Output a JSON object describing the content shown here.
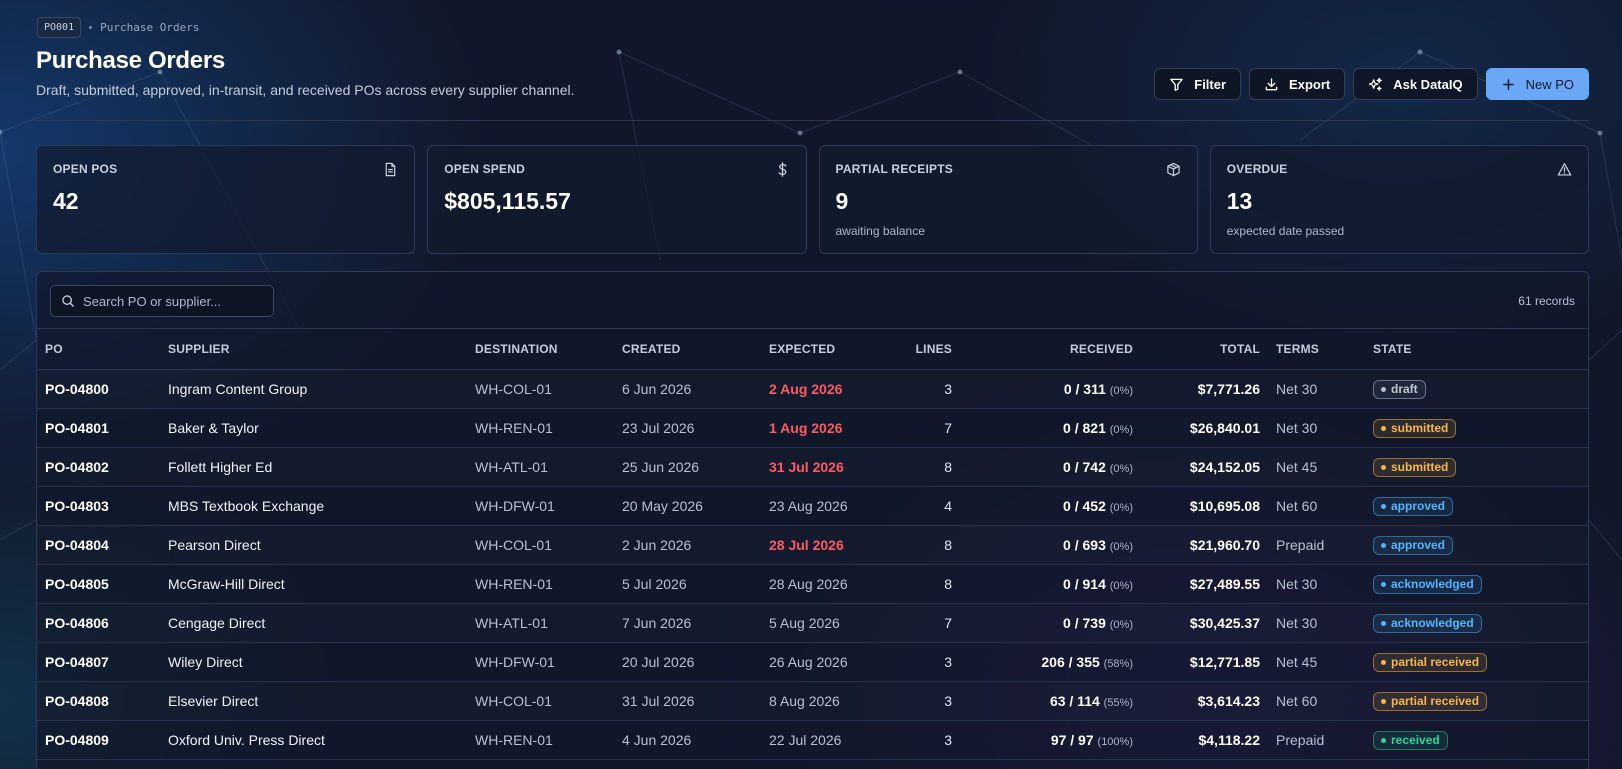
{
  "breadcrumb": {
    "code": "PO001",
    "label": "Purchase Orders"
  },
  "header": {
    "title": "Purchase Orders",
    "subtitle": "Draft, submitted, approved, in-transit, and received POs across every supplier channel."
  },
  "actions": {
    "filter": "Filter",
    "export": "Export",
    "ask": "Ask DataIQ",
    "new_po": "New PO"
  },
  "stats": [
    {
      "label": "OPEN POS",
      "value": "42",
      "sub": "",
      "icon": "document-icon"
    },
    {
      "label": "OPEN SPEND",
      "value": "$805,115.57",
      "sub": "",
      "icon": "dollar-icon"
    },
    {
      "label": "PARTIAL RECEIPTS",
      "value": "9",
      "sub": "awaiting balance",
      "icon": "package-icon"
    },
    {
      "label": "OVERDUE",
      "value": "13",
      "sub": "expected date passed",
      "icon": "warning-icon"
    }
  ],
  "table": {
    "search_placeholder": "Search PO or supplier...",
    "records": "61 records",
    "columns": {
      "po": "PO",
      "supplier": "SUPPLIER",
      "destination": "DESTINATION",
      "created": "CREATED",
      "expected": "EXPECTED",
      "lines": "LINES",
      "received": "RECEIVED",
      "total": "TOTAL",
      "terms": "TERMS",
      "state": "STATE"
    },
    "rows": [
      {
        "po": "PO-04800",
        "supplier": "Ingram Content Group",
        "destination": "WH-COL-01",
        "created": "6 Jun 2026",
        "expected": "2 Aug 2026",
        "late": true,
        "lines": "3",
        "received": "0 / 311",
        "pct": "(0%)",
        "total": "$7,771.26",
        "terms": "Net 30",
        "state": "draft",
        "state_class": "b-draft"
      },
      {
        "po": "PO-04801",
        "supplier": "Baker & Taylor",
        "destination": "WH-REN-01",
        "created": "23 Jul 2026",
        "expected": "1 Aug 2026",
        "late": true,
        "lines": "7",
        "received": "0 / 821",
        "pct": "(0%)",
        "total": "$26,840.01",
        "terms": "Net 30",
        "state": "submitted",
        "state_class": "b-submitted"
      },
      {
        "po": "PO-04802",
        "supplier": "Follett Higher Ed",
        "destination": "WH-ATL-01",
        "created": "25 Jun 2026",
        "expected": "31 Jul 2026",
        "late": true,
        "lines": "8",
        "received": "0 / 742",
        "pct": "(0%)",
        "total": "$24,152.05",
        "terms": "Net 45",
        "state": "submitted",
        "state_class": "b-submitted"
      },
      {
        "po": "PO-04803",
        "supplier": "MBS Textbook Exchange",
        "destination": "WH-DFW-01",
        "created": "20 May 2026",
        "expected": "23 Aug 2026",
        "late": false,
        "lines": "4",
        "received": "0 / 452",
        "pct": "(0%)",
        "total": "$10,695.08",
        "terms": "Net 60",
        "state": "approved",
        "state_class": "b-approved"
      },
      {
        "po": "PO-04804",
        "supplier": "Pearson Direct",
        "destination": "WH-COL-01",
        "created": "2 Jun 2026",
        "expected": "28 Jul 2026",
        "late": true,
        "lines": "8",
        "received": "0 / 693",
        "pct": "(0%)",
        "total": "$21,960.70",
        "terms": "Prepaid",
        "state": "approved",
        "state_class": "b-approved"
      },
      {
        "po": "PO-04805",
        "supplier": "McGraw-Hill Direct",
        "destination": "WH-REN-01",
        "created": "5 Jul 2026",
        "expected": "28 Aug 2026",
        "late": false,
        "lines": "8",
        "received": "0 / 914",
        "pct": "(0%)",
        "total": "$27,489.55",
        "terms": "Net 30",
        "state": "acknowledged",
        "state_class": "b-acknowledged"
      },
      {
        "po": "PO-04806",
        "supplier": "Cengage Direct",
        "destination": "WH-ATL-01",
        "created": "7 Jun 2026",
        "expected": "5 Aug 2026",
        "late": false,
        "lines": "7",
        "received": "0 / 739",
        "pct": "(0%)",
        "total": "$30,425.37",
        "terms": "Net 30",
        "state": "acknowledged",
        "state_class": "b-acknowledged"
      },
      {
        "po": "PO-04807",
        "supplier": "Wiley Direct",
        "destination": "WH-DFW-01",
        "created": "20 Jul 2026",
        "expected": "26 Aug 2026",
        "late": false,
        "lines": "3",
        "received": "206 / 355",
        "pct": "(58%)",
        "total": "$12,771.85",
        "terms": "Net 45",
        "state": "partial received",
        "state_class": "b-partial"
      },
      {
        "po": "PO-04808",
        "supplier": "Elsevier Direct",
        "destination": "WH-COL-01",
        "created": "31 Jul 2026",
        "expected": "8 Aug 2026",
        "late": false,
        "lines": "3",
        "received": "63 / 114",
        "pct": "(55%)",
        "total": "$3,614.23",
        "terms": "Net 60",
        "state": "partial received",
        "state_class": "b-partial"
      },
      {
        "po": "PO-04809",
        "supplier": "Oxford Univ. Press Direct",
        "destination": "WH-REN-01",
        "created": "4 Jun 2026",
        "expected": "22 Jul 2026",
        "late": false,
        "lines": "3",
        "received": "97 / 97",
        "pct": "(100%)",
        "total": "$4,118.22",
        "terms": "Prepaid",
        "state": "received",
        "state_class": "b-received"
      }
    ]
  }
}
